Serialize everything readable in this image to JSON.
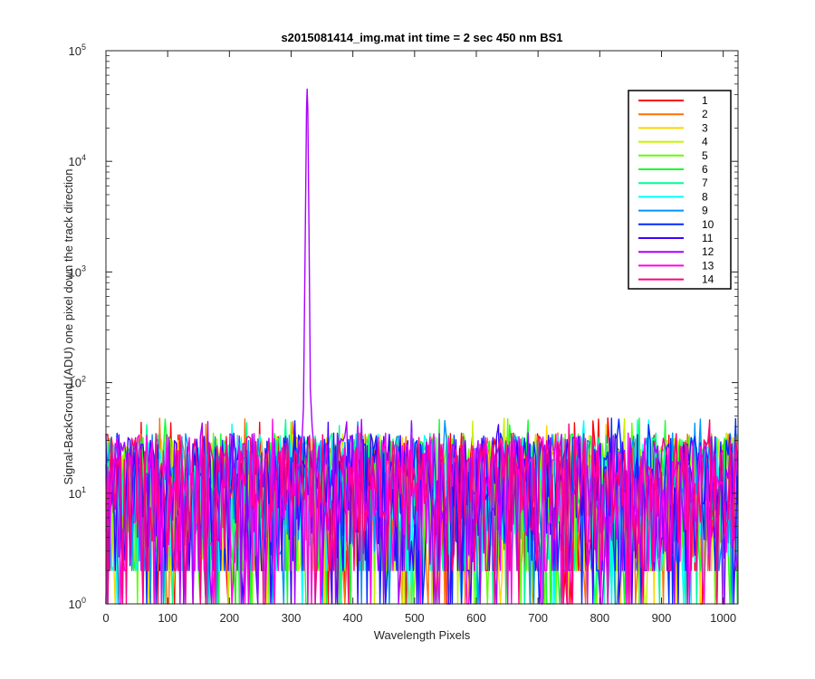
{
  "chart_data": {
    "type": "line",
    "title": "s2015081414_img.mat int time = 2 sec  450 nm BS1",
    "xlabel": "Wavelength Pixels",
    "ylabel": "Signal-BackGround (ADU) one pixel down the track direction",
    "xlim": [
      0,
      1024
    ],
    "ylim": [
      1,
      100000
    ],
    "yscale": "log",
    "x_ticks": [
      0,
      100,
      200,
      300,
      400,
      500,
      600,
      700,
      800,
      900,
      1000
    ],
    "x_tick_labels": [
      "0",
      "100",
      "200",
      "300",
      "400",
      "500",
      "600",
      "700",
      "800",
      "900",
      "1000"
    ],
    "y_ticks": [
      1,
      10,
      100,
      1000,
      10000,
      100000
    ],
    "y_tick_labels": [
      {
        "base": "10",
        "exp": "0"
      },
      {
        "base": "10",
        "exp": "1"
      },
      {
        "base": "10",
        "exp": "2"
      },
      {
        "base": "10",
        "exp": "3"
      },
      {
        "base": "10",
        "exp": "4"
      },
      {
        "base": "10",
        "exp": "5"
      }
    ],
    "grid": false,
    "legend_location": "top-right",
    "series": [
      {
        "name": "1",
        "color": "#ff0000"
      },
      {
        "name": "2",
        "color": "#ff7000"
      },
      {
        "name": "3",
        "color": "#ffd500"
      },
      {
        "name": "4",
        "color": "#c8f000"
      },
      {
        "name": "5",
        "color": "#5fff00"
      },
      {
        "name": "6",
        "color": "#11ff2a"
      },
      {
        "name": "7",
        "color": "#00ff94"
      },
      {
        "name": "8",
        "color": "#00ffff"
      },
      {
        "name": "9",
        "color": "#0095ff"
      },
      {
        "name": "10",
        "color": "#002bff"
      },
      {
        "name": "11",
        "color": "#3f00ff"
      },
      {
        "name": "12",
        "color": "#aa00ff"
      },
      {
        "name": "13",
        "color": "#ff00e9"
      },
      {
        "name": "14",
        "color": "#ff0080"
      }
    ],
    "noise_floor": {
      "typical_min": 2,
      "typical_max": 35,
      "max_observed": 48
    },
    "peak": {
      "series": "12",
      "x": 326,
      "y": 45000
    },
    "secondary_peak": {
      "x": 330,
      "y": 90
    }
  }
}
